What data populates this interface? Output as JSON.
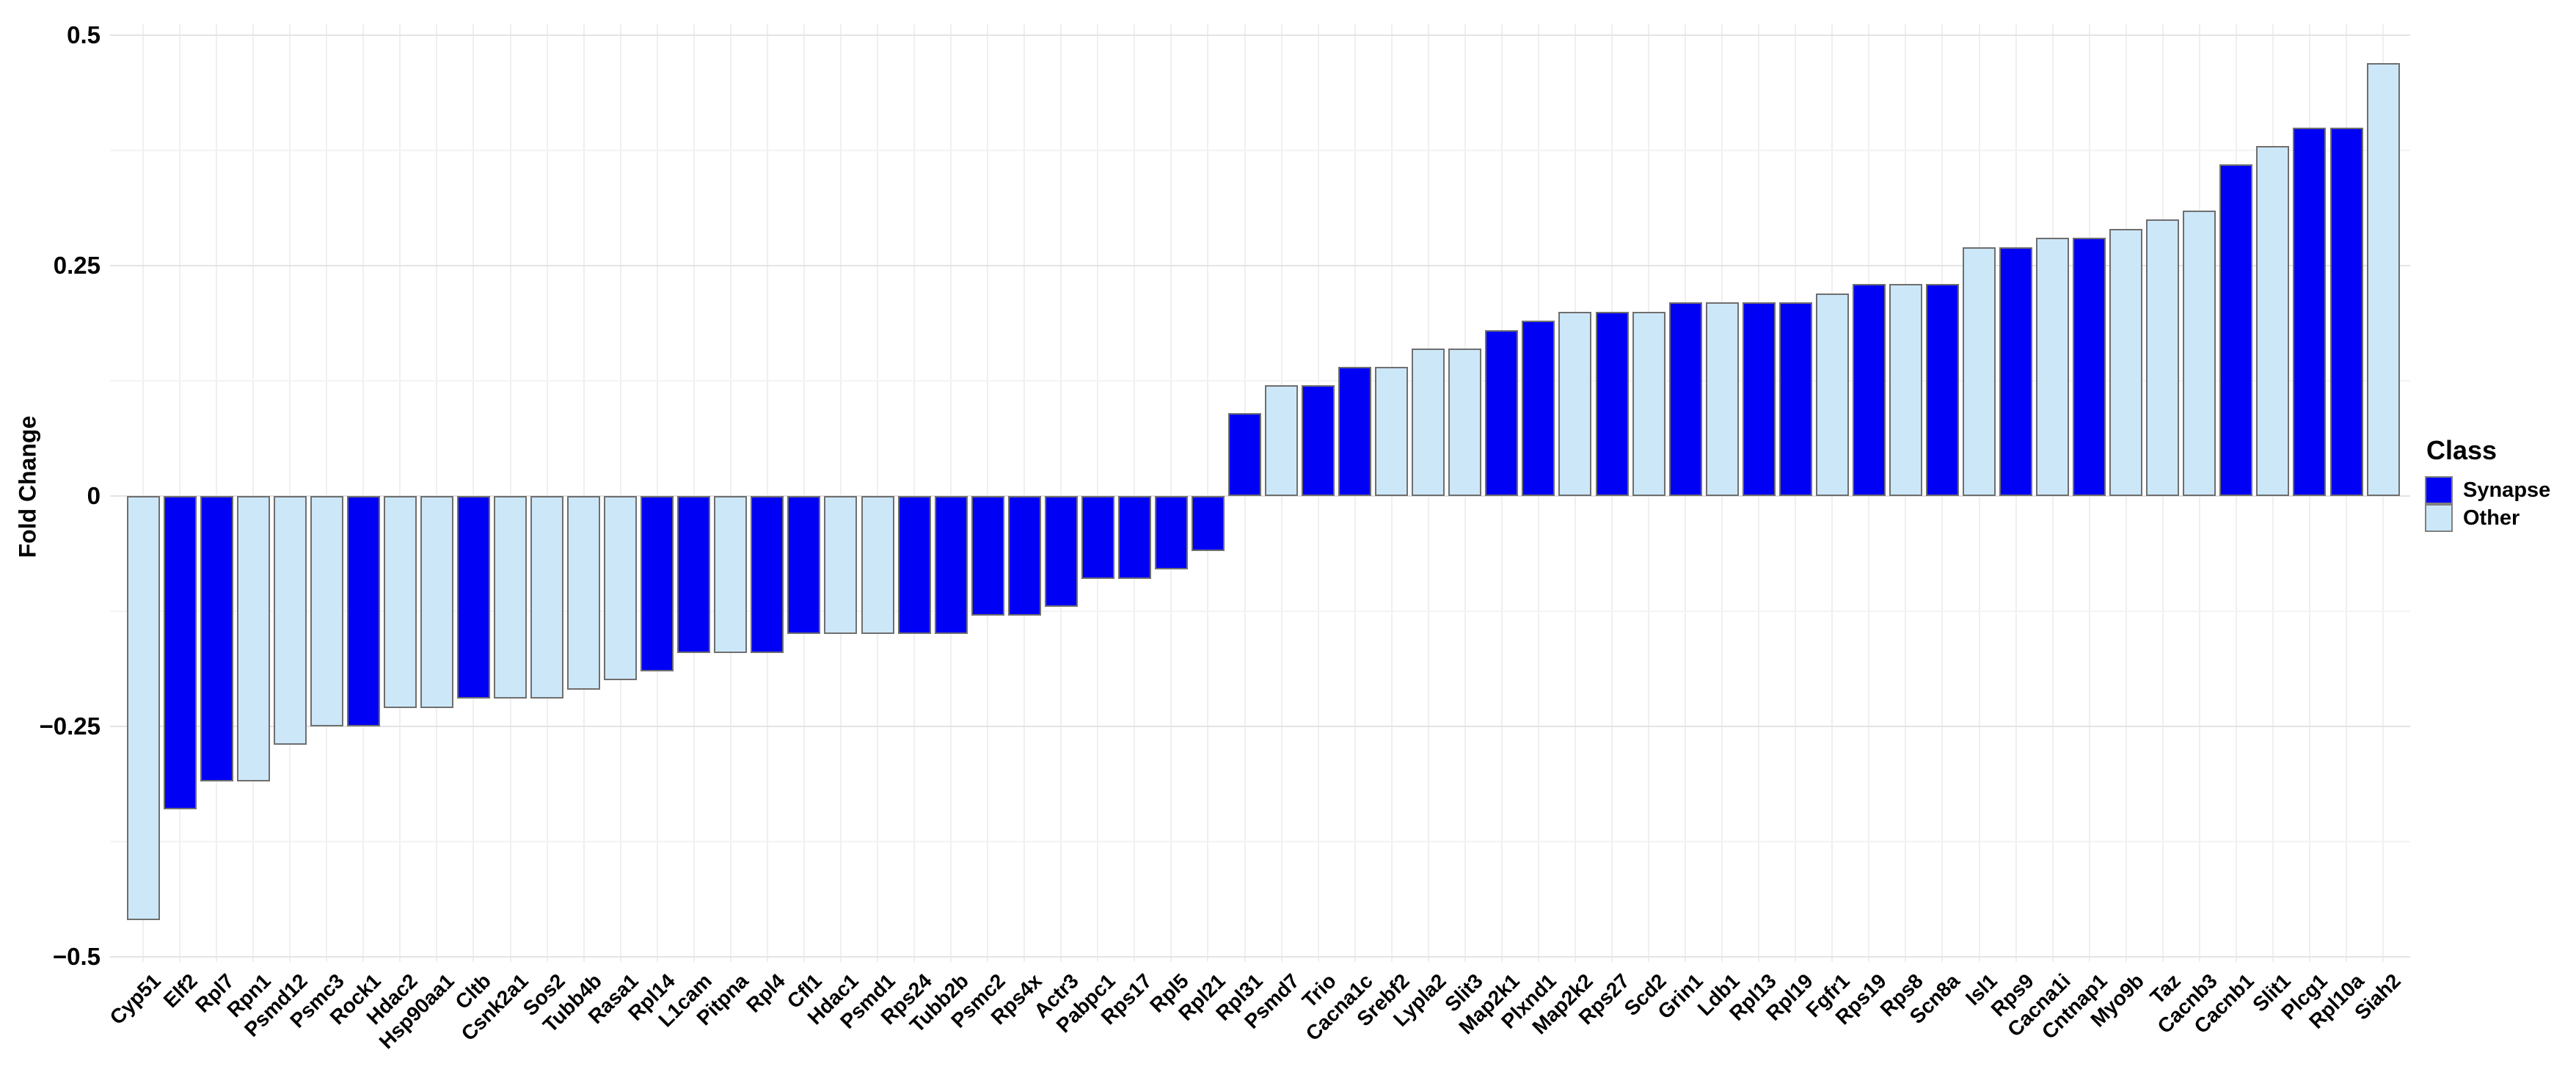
{
  "chart_data": {
    "type": "bar",
    "title": "",
    "xlabel": "",
    "ylabel": "Fold Change",
    "ylim": [
      -0.5,
      0.5
    ],
    "yticks": [
      0.5,
      0.25,
      0,
      -0.25,
      -0.5
    ],
    "ytick_labels": [
      "0.5",
      "0.25",
      "0",
      "−0.25",
      "−0.5"
    ],
    "minor_gridlines": [
      0.375,
      0.125,
      -0.125,
      -0.375
    ],
    "grid": "on",
    "grid_major_color": "#E4E4E4",
    "grid_minor_color": "#F3F3F3",
    "vgrid_color": "#EFEFEF",
    "bar_border_color": "#6F6F6F",
    "legend": {
      "title": "Class",
      "position": "right",
      "entries": [
        {
          "label": "Synapse",
          "color": "#0000F5"
        },
        {
          "label": "Other",
          "color": "#CCE7F8"
        }
      ]
    },
    "categories": [
      "Cyp51",
      "Elf2",
      "Rpl7",
      "Rpn1",
      "Psmd12",
      "Psmc3",
      "Rock1",
      "Hdac2",
      "Hsp90aa1",
      "Cltb",
      "Csnk2a1",
      "Sos2",
      "Tubb4b",
      "Rasa1",
      "Rpl14",
      "L1cam",
      "Pitpna",
      "Rpl4",
      "Cfl1",
      "Hdac1",
      "Psmd1",
      "Rps24",
      "Tubb2b",
      "Psmc2",
      "Rps4x",
      "Actr3",
      "Pabpc1",
      "Rps17",
      "Rpl5",
      "Rpl21",
      "Rpl31",
      "Psmd7",
      "Trio",
      "Cacna1c",
      "Srebf2",
      "Lypla2",
      "Slit3",
      "Map2k1",
      "Plxnd1",
      "Map2k2",
      "Rps27",
      "Scd2",
      "Grin1",
      "Ldb1",
      "Rpl13",
      "Rpl19",
      "Fgfr1",
      "Rps19",
      "Rps8",
      "Scn8a",
      "Isl1",
      "Rps9",
      "Cacna1i",
      "Cntnap1",
      "Myo9b",
      "Taz",
      "Cacnb3",
      "Cacnb1",
      "Slit1",
      "Plcg1",
      "Rpl10a",
      "Siah2"
    ],
    "values": [
      -0.46,
      -0.34,
      -0.31,
      -0.31,
      -0.27,
      -0.25,
      -0.25,
      -0.23,
      -0.23,
      -0.22,
      -0.22,
      -0.22,
      -0.21,
      -0.2,
      -0.19,
      -0.17,
      -0.17,
      -0.17,
      -0.15,
      -0.15,
      -0.15,
      -0.15,
      -0.15,
      -0.13,
      -0.13,
      -0.12,
      -0.09,
      -0.09,
      -0.08,
      -0.06,
      0.09,
      0.12,
      0.12,
      0.14,
      0.14,
      0.16,
      0.16,
      0.18,
      0.19,
      0.2,
      0.2,
      0.2,
      0.21,
      0.21,
      0.21,
      0.21,
      0.22,
      0.23,
      0.23,
      0.23,
      0.27,
      0.27,
      0.28,
      0.28,
      0.29,
      0.3,
      0.31,
      0.36,
      0.38,
      0.4,
      0.4,
      0.47
    ],
    "classes": [
      "Other",
      "Synapse",
      "Synapse",
      "Other",
      "Other",
      "Other",
      "Synapse",
      "Other",
      "Other",
      "Synapse",
      "Other",
      "Other",
      "Other",
      "Other",
      "Synapse",
      "Synapse",
      "Other",
      "Synapse",
      "Synapse",
      "Other",
      "Other",
      "Synapse",
      "Synapse",
      "Synapse",
      "Synapse",
      "Synapse",
      "Synapse",
      "Synapse",
      "Synapse",
      "Synapse",
      "Synapse",
      "Other",
      "Synapse",
      "Synapse",
      "Other",
      "Other",
      "Other",
      "Synapse",
      "Synapse",
      "Other",
      "Synapse",
      "Other",
      "Synapse",
      "Other",
      "Synapse",
      "Synapse",
      "Other",
      "Synapse",
      "Other",
      "Synapse",
      "Other",
      "Synapse",
      "Other",
      "Synapse",
      "Other",
      "Other",
      "Other",
      "Synapse",
      "Other",
      "Synapse",
      "Synapse",
      "Other"
    ]
  }
}
